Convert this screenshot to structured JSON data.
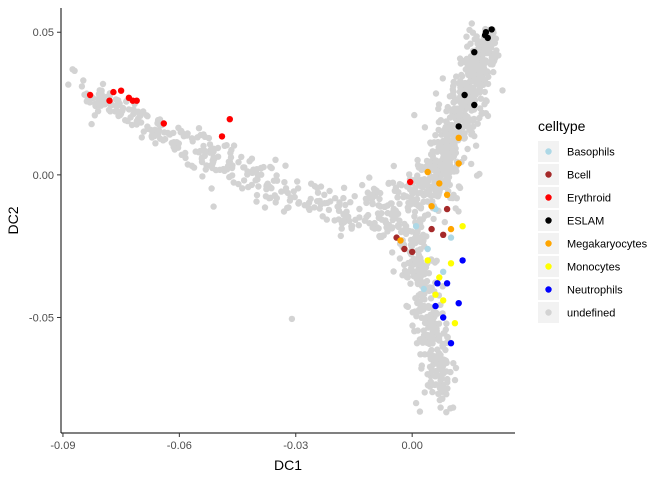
{
  "chart_data": {
    "type": "scatter",
    "title": "",
    "xlabel": "DC1",
    "ylabel": "DC2",
    "xlim": [
      -0.0905,
      0.0265
    ],
    "ylim": [
      -0.0905,
      0.0585
    ],
    "x_ticks": [
      -0.09,
      -0.06,
      -0.03,
      0.0
    ],
    "x_tick_labels": [
      "-0.09",
      "-0.06",
      "-0.03",
      "0.00"
    ],
    "y_ticks": [
      0.05,
      0.0,
      -0.05
    ],
    "y_tick_labels": [
      "0.05",
      "0.00",
      "-0.05"
    ],
    "grid": false,
    "legend_position": "right",
    "legend_title": "celltype",
    "series": [
      {
        "name": "Basophils",
        "color": "#add8e6",
        "points": [
          [
            0.001,
            -0.018
          ],
          [
            0.004,
            -0.026
          ],
          [
            0.008,
            -0.034
          ],
          [
            0.006,
            -0.012
          ],
          [
            0.01,
            -0.022
          ],
          [
            0.003,
            -0.04
          ]
        ]
      },
      {
        "name": "Bcell",
        "color": "#a52a2a",
        "points": [
          [
            -0.004,
            -0.022
          ],
          [
            -0.002,
            -0.026
          ],
          [
            0.0,
            -0.027
          ],
          [
            0.008,
            -0.021
          ],
          [
            0.009,
            -0.012
          ],
          [
            0.005,
            -0.019
          ]
        ]
      },
      {
        "name": "Erythroid",
        "color": "#ff0000",
        "points": [
          [
            -0.083,
            0.028
          ],
          [
            -0.078,
            0.026
          ],
          [
            -0.077,
            0.029
          ],
          [
            -0.075,
            0.0295
          ],
          [
            -0.073,
            0.027
          ],
          [
            -0.072,
            0.026
          ],
          [
            -0.071,
            0.026
          ],
          [
            -0.064,
            0.018
          ],
          [
            -0.049,
            0.0135
          ],
          [
            -0.047,
            0.0195
          ],
          [
            -0.0005,
            -0.0025
          ]
        ]
      },
      {
        "name": "ESLAM",
        "color": "#000000",
        "points": [
          [
            0.019,
            0.05
          ],
          [
            0.0195,
            0.048
          ],
          [
            0.0188,
            0.049
          ],
          [
            0.0205,
            0.051
          ],
          [
            0.016,
            0.043
          ],
          [
            0.016,
            0.0245
          ],
          [
            0.012,
            0.017
          ],
          [
            0.0135,
            0.028
          ]
        ]
      },
      {
        "name": "Megakaryocytes",
        "color": "#ffa500",
        "points": [
          [
            -0.003,
            -0.023
          ],
          [
            0.005,
            -0.011
          ],
          [
            0.007,
            -0.003
          ],
          [
            0.009,
            -0.007
          ],
          [
            0.01,
            -0.019
          ],
          [
            0.012,
            0.004
          ],
          [
            0.012,
            0.013
          ],
          [
            0.004,
            0.001
          ]
        ]
      },
      {
        "name": "Monocytes",
        "color": "#ffff00",
        "points": [
          [
            0.004,
            -0.03
          ],
          [
            0.007,
            -0.036
          ],
          [
            0.008,
            -0.044
          ],
          [
            0.01,
            -0.031
          ],
          [
            0.011,
            -0.052
          ],
          [
            0.013,
            -0.018
          ],
          [
            0.006,
            -0.042
          ]
        ]
      },
      {
        "name": "Neutrophils",
        "color": "#0000ff",
        "points": [
          [
            0.006,
            -0.046
          ],
          [
            0.0065,
            -0.038
          ],
          [
            0.008,
            -0.05
          ],
          [
            0.009,
            -0.038
          ],
          [
            0.01,
            -0.059
          ],
          [
            0.013,
            -0.03
          ],
          [
            0.012,
            -0.045
          ]
        ]
      },
      {
        "name": "undefined",
        "color": "#d3d3d3",
        "points": []
      }
    ]
  }
}
